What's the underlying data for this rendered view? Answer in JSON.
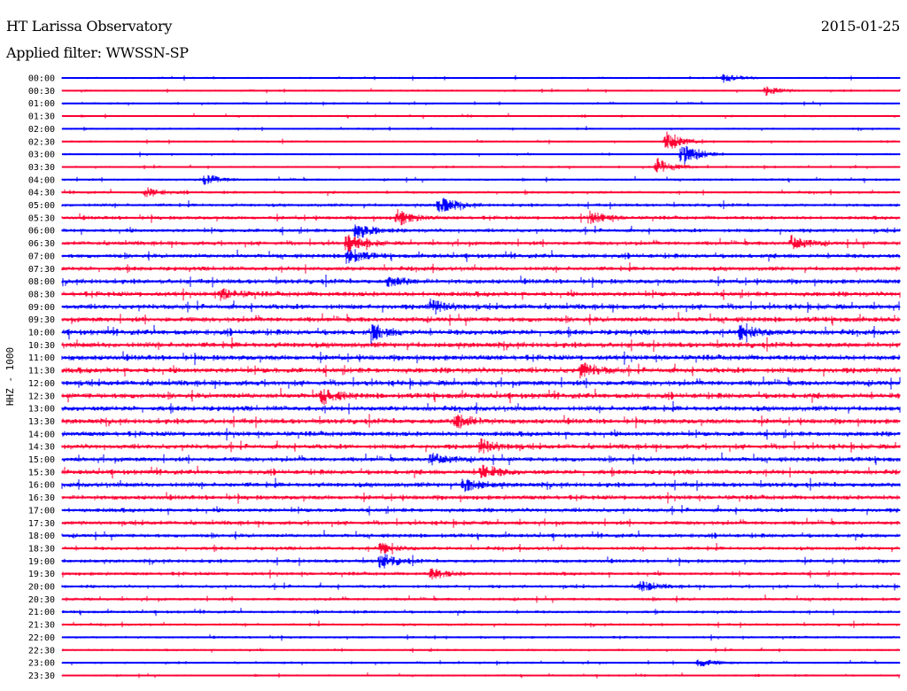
{
  "header": {
    "station": "HT Larissa Observatory",
    "date": "2015-01-25",
    "filter": "Applied filter: WWSSN-SP"
  },
  "chart_data": {
    "type": "line",
    "ylabel": "HHZ - 1000",
    "colors": [
      "#0000ff",
      "#ff0033"
    ],
    "row_labels": [
      "00:00",
      "00:30",
      "01:00",
      "01:30",
      "02:00",
      "02:30",
      "03:00",
      "03:30",
      "04:00",
      "04:30",
      "05:00",
      "05:30",
      "06:00",
      "06:30",
      "07:00",
      "07:30",
      "08:00",
      "08:30",
      "09:00",
      "09:30",
      "10:00",
      "10:30",
      "11:00",
      "11:30",
      "12:00",
      "12:30",
      "13:00",
      "13:30",
      "14:00",
      "14:30",
      "15:00",
      "15:30",
      "16:00",
      "16:30",
      "17:00",
      "17:30",
      "18:00",
      "18:30",
      "19:00",
      "19:30",
      "20:00",
      "20:30",
      "21:00",
      "21:30",
      "22:00",
      "22:30",
      "23:00",
      "23:30"
    ],
    "noise_level": [
      1,
      1,
      1,
      1,
      1,
      1,
      1,
      1,
      1.2,
      1.3,
      1.6,
      1.8,
      1.9,
      2,
      2.1,
      2.1,
      2.3,
      2.4,
      2.5,
      2.5,
      2.6,
      2.6,
      2.6,
      2.7,
      2.6,
      2.6,
      2.5,
      2.5,
      2.4,
      2.4,
      2.3,
      2.3,
      2.3,
      2.2,
      2.1,
      2,
      1.9,
      1.8,
      1.8,
      1.7,
      1.6,
      1.5,
      1.4,
      1.3,
      1.2,
      1.1,
      1.1,
      1
    ],
    "events": [
      {
        "row": 6,
        "x": 0.74,
        "amp": 14
      },
      {
        "row": 5,
        "x": 0.72,
        "amp": 12
      },
      {
        "row": 7,
        "x": 0.71,
        "amp": 10
      },
      {
        "row": 10,
        "x": 0.45,
        "amp": 10
      },
      {
        "row": 11,
        "x": 0.4,
        "amp": 9
      },
      {
        "row": 11,
        "x": 0.63,
        "amp": 7
      },
      {
        "row": 12,
        "x": 0.35,
        "amp": 10
      },
      {
        "row": 13,
        "x": 0.34,
        "amp": 10
      },
      {
        "row": 14,
        "x": 0.34,
        "amp": 9
      },
      {
        "row": 13,
        "x": 0.87,
        "amp": 8
      },
      {
        "row": 18,
        "x": 0.44,
        "amp": 8
      },
      {
        "row": 20,
        "x": 0.37,
        "amp": 8
      },
      {
        "row": 20,
        "x": 0.81,
        "amp": 9
      },
      {
        "row": 23,
        "x": 0.62,
        "amp": 8
      },
      {
        "row": 25,
        "x": 0.31,
        "amp": 8
      },
      {
        "row": 27,
        "x": 0.47,
        "amp": 9
      },
      {
        "row": 29,
        "x": 0.5,
        "amp": 8
      },
      {
        "row": 30,
        "x": 0.44,
        "amp": 7
      },
      {
        "row": 31,
        "x": 0.5,
        "amp": 9
      },
      {
        "row": 32,
        "x": 0.48,
        "amp": 8
      },
      {
        "row": 38,
        "x": 0.38,
        "amp": 9
      },
      {
        "row": 37,
        "x": 0.38,
        "amp": 6
      },
      {
        "row": 0,
        "x": 0.79,
        "amp": 5
      },
      {
        "row": 1,
        "x": 0.84,
        "amp": 5
      },
      {
        "row": 8,
        "x": 0.17,
        "amp": 6
      },
      {
        "row": 9,
        "x": 0.1,
        "amp": 5
      },
      {
        "row": 17,
        "x": 0.19,
        "amp": 6
      },
      {
        "row": 16,
        "x": 0.39,
        "amp": 6
      },
      {
        "row": 39,
        "x": 0.44,
        "amp": 6
      },
      {
        "row": 40,
        "x": 0.69,
        "amp": 6
      },
      {
        "row": 46,
        "x": 0.76,
        "amp": 5
      }
    ]
  }
}
